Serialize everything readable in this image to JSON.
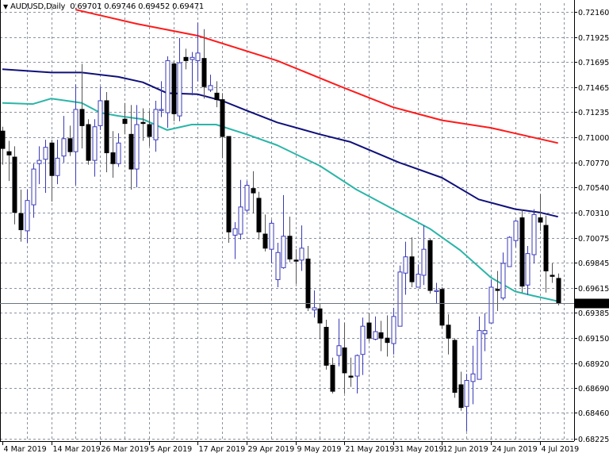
{
  "header": {
    "symbol": "AUDUSD,Daily",
    "open": "0.69701",
    "high": "0.69746",
    "low": "0.69452",
    "close": "0.69471",
    "menu_icon": "triangle-down-icon"
  },
  "colors": {
    "bull_body": "#ffffff",
    "bull_outline": "#3a3ab8",
    "bear_body": "#000000",
    "bear_wick": "#555555",
    "ma_red": "#ff1a1a",
    "ma_navy": "#10107a",
    "ma_teal": "#2bb5a8",
    "grid": "#8a93a0",
    "price_line": "#6b7480",
    "price_label_bg": "#000000"
  },
  "chart_data": {
    "type": "candlestick",
    "symbol": "AUDUSD",
    "timeframe": "Daily",
    "grid": true,
    "ylim": [
      0.682,
      0.7224
    ],
    "y_ticks": [
      "0.72160",
      "0.71925",
      "0.71695",
      "0.71465",
      "0.71235",
      "0.71000",
      "0.70770",
      "0.70540",
      "0.70310",
      "0.70075",
      "0.69845",
      "0.69615",
      "0.69385",
      "0.69150",
      "0.68920",
      "0.68690",
      "0.68460",
      "0.68225"
    ],
    "x_ticks": [
      {
        "bar": 0,
        "label": "4 Mar 2019"
      },
      {
        "bar": 8,
        "label": "14 Mar 2019"
      },
      {
        "bar": 16,
        "label": "26 Mar 2019"
      },
      {
        "bar": 24,
        "label": "5 Apr 2019"
      },
      {
        "bar": 32,
        "label": "17 Apr 2019"
      },
      {
        "bar": 40,
        "label": "29 Apr 2019"
      },
      {
        "bar": 48,
        "label": "9 May 2019"
      },
      {
        "bar": 56,
        "label": "21 May 2019"
      },
      {
        "bar": 64,
        "label": "31 May 2019"
      },
      {
        "bar": 72,
        "label": "12 Jun 2019"
      },
      {
        "bar": 80,
        "label": "24 Jun 2019"
      },
      {
        "bar": 88,
        "label": "4 Jul 2019"
      }
    ],
    "current_price": "0.69471",
    "ohlc": [
      [
        0.7106,
        0.711,
        0.7075,
        0.709
      ],
      [
        0.7087,
        0.7097,
        0.706,
        0.7084
      ],
      [
        0.7082,
        0.7092,
        0.702,
        0.7031
      ],
      [
        0.703,
        0.7052,
        0.7004,
        0.7015
      ],
      [
        0.7014,
        0.7052,
        0.7003,
        0.7042
      ],
      [
        0.7038,
        0.7076,
        0.7026,
        0.7071
      ],
      [
        0.7076,
        0.7092,
        0.7057,
        0.7079
      ],
      [
        0.708,
        0.7098,
        0.7049,
        0.7091
      ],
      [
        0.7095,
        0.7098,
        0.7041,
        0.7065
      ],
      [
        0.7065,
        0.7098,
        0.7057,
        0.7081
      ],
      [
        0.7083,
        0.712,
        0.7077,
        0.7099
      ],
      [
        0.7099,
        0.7111,
        0.7083,
        0.7087
      ],
      [
        0.7087,
        0.7149,
        0.7056,
        0.7126
      ],
      [
        0.7126,
        0.7168,
        0.709,
        0.7111
      ],
      [
        0.7112,
        0.7117,
        0.7075,
        0.7079
      ],
      [
        0.7079,
        0.7117,
        0.7064,
        0.711
      ],
      [
        0.7111,
        0.7147,
        0.7107,
        0.7134
      ],
      [
        0.7134,
        0.7142,
        0.7068,
        0.7086
      ],
      [
        0.7086,
        0.7106,
        0.7063,
        0.7076
      ],
      [
        0.7076,
        0.7104,
        0.7073,
        0.7095
      ],
      [
        0.7117,
        0.7132,
        0.7103,
        0.7113
      ],
      [
        0.7103,
        0.713,
        0.7052,
        0.7071
      ],
      [
        0.7071,
        0.713,
        0.7054,
        0.7112
      ],
      [
        0.7114,
        0.7127,
        0.7097,
        0.7113
      ],
      [
        0.7112,
        0.7125,
        0.7092,
        0.7101
      ],
      [
        0.7098,
        0.7134,
        0.7087,
        0.7126
      ],
      [
        0.7125,
        0.7152,
        0.7119,
        0.7126
      ],
      [
        0.7123,
        0.7175,
        0.7109,
        0.7171
      ],
      [
        0.7168,
        0.7171,
        0.7115,
        0.7122
      ],
      [
        0.712,
        0.7192,
        0.7115,
        0.7169
      ],
      [
        0.7174,
        0.7182,
        0.7163,
        0.7171
      ],
      [
        0.7172,
        0.7179,
        0.7139,
        0.7174
      ],
      [
        0.7171,
        0.7206,
        0.7152,
        0.7178
      ],
      [
        0.7173,
        0.72,
        0.7136,
        0.7147
      ],
      [
        0.7144,
        0.7158,
        0.7142,
        0.7148
      ],
      [
        0.7141,
        0.7152,
        0.7128,
        0.7135
      ],
      [
        0.7135,
        0.7141,
        0.7081,
        0.7101
      ],
      [
        0.7101,
        0.7101,
        0.7003,
        0.7013
      ],
      [
        0.701,
        0.7022,
        0.6988,
        0.7016
      ],
      [
        0.7011,
        0.7061,
        0.7006,
        0.7036
      ],
      [
        0.7033,
        0.706,
        0.7031,
        0.7056
      ],
      [
        0.7053,
        0.7069,
        0.703,
        0.7049
      ],
      [
        0.7044,
        0.705,
        0.7006,
        0.7013
      ],
      [
        0.7011,
        0.7029,
        0.6995,
        0.6998
      ],
      [
        0.6997,
        0.7024,
        0.6984,
        0.7021
      ],
      [
        0.6969,
        0.7003,
        0.6962,
        0.6994
      ],
      [
        0.698,
        0.7047,
        0.6979,
        0.7009
      ],
      [
        0.7009,
        0.7027,
        0.6985,
        0.6988
      ],
      [
        0.6987,
        0.6997,
        0.6965,
        0.6986
      ],
      [
        0.6987,
        0.7019,
        0.6977,
        0.6998
      ],
      [
        0.6988,
        0.7,
        0.694,
        0.6943
      ],
      [
        0.6941,
        0.6959,
        0.6934,
        0.6943
      ],
      [
        0.6942,
        0.6947,
        0.6914,
        0.6929
      ],
      [
        0.6925,
        0.6932,
        0.6886,
        0.689
      ],
      [
        0.689,
        0.6897,
        0.6864,
        0.6866
      ],
      [
        0.6899,
        0.6933,
        0.6889,
        0.6908
      ],
      [
        0.6906,
        0.6929,
        0.6864,
        0.6883
      ],
      [
        0.688,
        0.6897,
        0.687,
        0.6879
      ],
      [
        0.688,
        0.69,
        0.6864,
        0.6899
      ],
      [
        0.69,
        0.6934,
        0.6881,
        0.6926
      ],
      [
        0.6929,
        0.6938,
        0.6912,
        0.6915
      ],
      [
        0.6914,
        0.6935,
        0.6913,
        0.6921
      ],
      [
        0.692,
        0.6931,
        0.6903,
        0.6915
      ],
      [
        0.6915,
        0.6936,
        0.6898,
        0.6911
      ],
      [
        0.691,
        0.6943,
        0.69,
        0.6935
      ],
      [
        0.6926,
        0.6982,
        0.6926,
        0.6976
      ],
      [
        0.6975,
        0.7004,
        0.6955,
        0.699
      ],
      [
        0.699,
        0.7008,
        0.6962,
        0.6967
      ],
      [
        0.6962,
        0.6983,
        0.6962,
        0.6974
      ],
      [
        0.6973,
        0.7019,
        0.6964,
        0.6997
      ],
      [
        0.7005,
        0.7007,
        0.6956,
        0.6959
      ],
      [
        0.6958,
        0.6966,
        0.6947,
        0.6959
      ],
      [
        0.696,
        0.6962,
        0.6924,
        0.6927
      ],
      [
        0.6927,
        0.6937,
        0.69,
        0.6915
      ],
      [
        0.6913,
        0.6915,
        0.686,
        0.6865
      ],
      [
        0.6872,
        0.6884,
        0.6848,
        0.6851
      ],
      [
        0.6852,
        0.6882,
        0.6829,
        0.6876
      ],
      [
        0.6875,
        0.6908,
        0.6854,
        0.6882
      ],
      [
        0.6877,
        0.6935,
        0.6877,
        0.6922
      ],
      [
        0.6919,
        0.6938,
        0.6903,
        0.6922
      ],
      [
        0.6929,
        0.6969,
        0.6929,
        0.6962
      ],
      [
        0.696,
        0.6977,
        0.694,
        0.6959
      ],
      [
        0.6952,
        0.6994,
        0.695,
        0.6984
      ],
      [
        0.6981,
        0.7009,
        0.6981,
        0.7008
      ],
      [
        0.7005,
        0.7024,
        0.6999,
        0.7023
      ],
      [
        0.7026,
        0.7034,
        0.6957,
        0.6963
      ],
      [
        0.6964,
        0.7,
        0.6955,
        0.6993
      ],
      [
        0.6992,
        0.7034,
        0.6984,
        0.7029
      ],
      [
        0.7026,
        0.7048,
        0.7014,
        0.7022
      ],
      [
        0.7019,
        0.7028,
        0.6957,
        0.6977
      ],
      [
        0.6973,
        0.6984,
        0.6966,
        0.6972
      ],
      [
        0.69701,
        0.69746,
        0.69452,
        0.69471
      ]
    ],
    "moving_averages": [
      {
        "color": "red",
        "points": [
          [
            12,
            0.7218
          ],
          [
            22,
            0.7205
          ],
          [
            32,
            0.7194
          ],
          [
            45,
            0.7171
          ],
          [
            55,
            0.7148
          ],
          [
            64,
            0.7128
          ],
          [
            72,
            0.7116
          ],
          [
            80,
            0.7109
          ],
          [
            91,
            0.7095
          ]
        ]
      },
      {
        "color": "navy",
        "points": [
          [
            0,
            0.7163
          ],
          [
            8,
            0.716
          ],
          [
            13,
            0.716
          ],
          [
            19,
            0.7156
          ],
          [
            23,
            0.7151
          ],
          [
            27,
            0.7141
          ],
          [
            32,
            0.714
          ],
          [
            36,
            0.7134
          ],
          [
            40,
            0.7125
          ],
          [
            45,
            0.7114
          ],
          [
            52,
            0.7103
          ],
          [
            57,
            0.7096
          ],
          [
            65,
            0.7077
          ],
          [
            72,
            0.7063
          ],
          [
            78,
            0.7043
          ],
          [
            84,
            0.7034
          ],
          [
            88,
            0.7031
          ],
          [
            91,
            0.7027
          ]
        ]
      },
      {
        "color": "teal",
        "points": [
          [
            0,
            0.7132
          ],
          [
            5,
            0.7131
          ],
          [
            8,
            0.7136
          ],
          [
            13,
            0.7132
          ],
          [
            16,
            0.7123
          ],
          [
            19,
            0.712
          ],
          [
            23,
            0.7117
          ],
          [
            27,
            0.7107
          ],
          [
            31,
            0.7112
          ],
          [
            35,
            0.7112
          ],
          [
            40,
            0.7103
          ],
          [
            45,
            0.7093
          ],
          [
            52,
            0.7074
          ],
          [
            58,
            0.7052
          ],
          [
            65,
            0.7031
          ],
          [
            70,
            0.7016
          ],
          [
            75,
            0.6996
          ],
          [
            80,
            0.6971
          ],
          [
            84,
            0.6958
          ],
          [
            87,
            0.6954
          ],
          [
            91,
            0.6949
          ]
        ]
      }
    ]
  }
}
